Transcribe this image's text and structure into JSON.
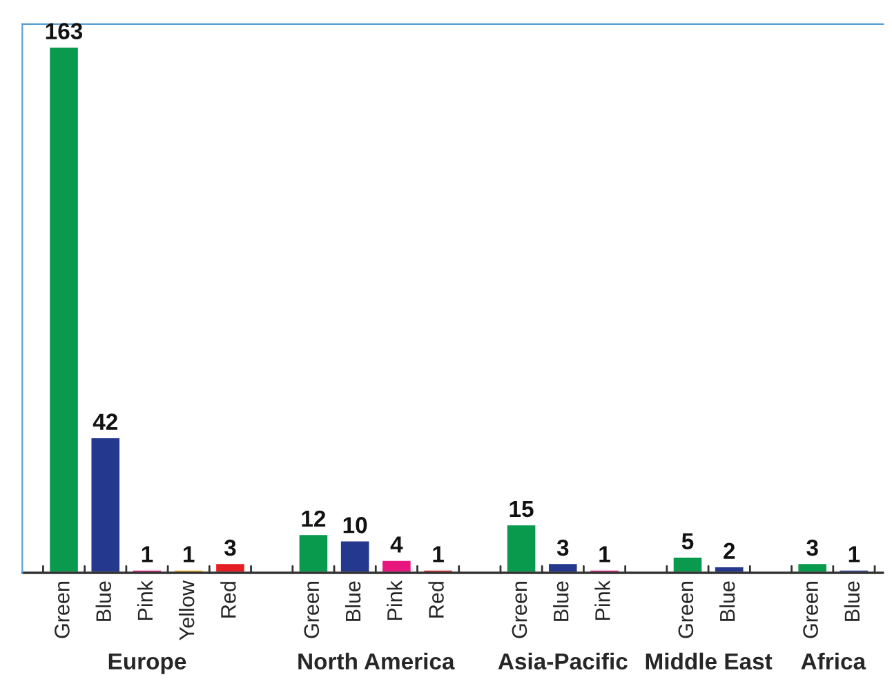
{
  "chart_data": {
    "type": "bar",
    "categories": [
      "Green",
      "Blue",
      "Pink",
      "Yellow",
      "Red",
      null,
      "Green",
      "Blue",
      "Pink",
      "Red",
      null,
      "Green",
      "Blue",
      "Pink",
      null,
      "Green",
      "Blue",
      null,
      "Green",
      "Blue"
    ],
    "values": [
      163,
      42,
      1,
      1,
      3,
      null,
      12,
      10,
      4,
      1,
      null,
      15,
      3,
      1,
      null,
      5,
      2,
      null,
      3,
      1
    ],
    "colors": [
      "#0a9a4e",
      "#24388e",
      "#e8177f",
      "#f2b21b",
      "#e31e24",
      null,
      "#0a9a4e",
      "#24388e",
      "#e8177f",
      "#e31e24",
      null,
      "#0a9a4e",
      "#24388e",
      "#e8177f",
      null,
      "#0a9a4e",
      "#24388e",
      null,
      "#0a9a4e",
      "#24388e"
    ],
    "value_labels": [
      "163",
      "42",
      "1",
      "1",
      "3",
      null,
      "12",
      "10",
      "4",
      "1",
      null,
      "15",
      "3",
      "1",
      null,
      "5",
      "2",
      null,
      "3",
      "1"
    ],
    "annotations": [
      "Europe",
      "North America",
      "Asia-Pacific",
      "Middle East",
      "Africa"
    ],
    "ylim": [
      0,
      170
    ],
    "tick_labels": "x",
    "grid": false,
    "legend": false
  }
}
